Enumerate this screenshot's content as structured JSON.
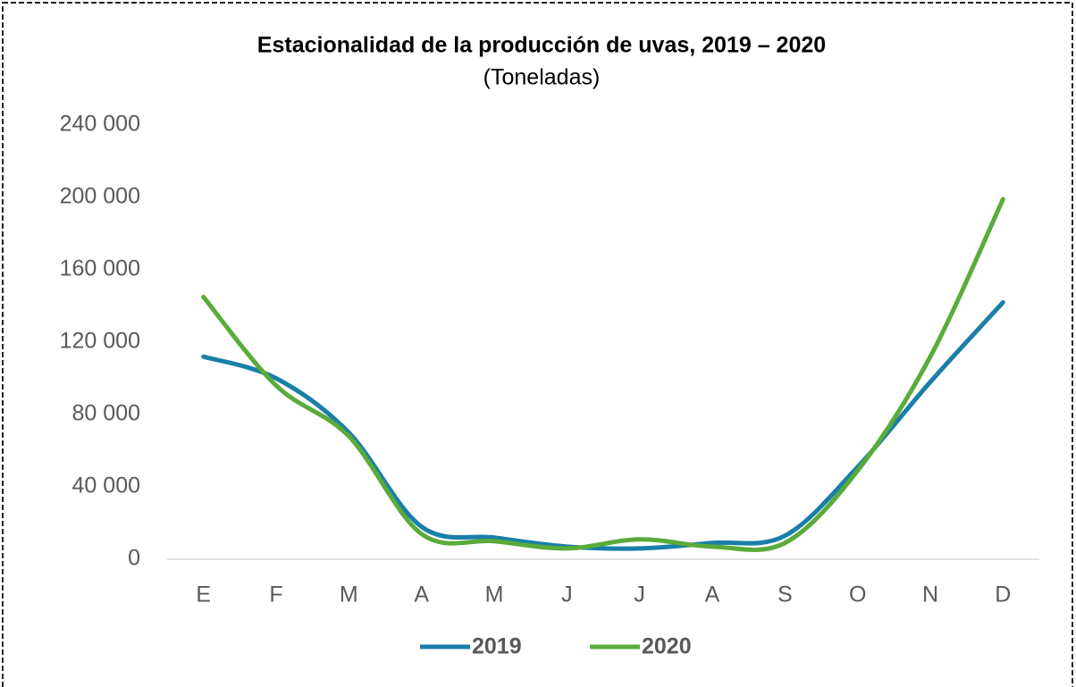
{
  "chart_data": {
    "type": "line",
    "title": "Estacionalidad de la producción de uvas, 2019 – 2020",
    "subtitle": "(Toneladas)",
    "categories": [
      "E",
      "F",
      "M",
      "A",
      "M",
      "J",
      "J",
      "A",
      "S",
      "O",
      "N",
      "D"
    ],
    "series": [
      {
        "name": "2019",
        "color": "#1a7fa8",
        "values": [
          112000,
          100000,
          70000,
          18000,
          12000,
          7000,
          6000,
          9000,
          13000,
          51000,
          98000,
          142000
        ]
      },
      {
        "name": "2020",
        "color": "#5aab3a",
        "values": [
          145000,
          96000,
          68000,
          14000,
          10000,
          6000,
          11000,
          7000,
          9000,
          49000,
          112000,
          199000
        ]
      }
    ],
    "ylim": [
      0,
      240000
    ],
    "yticks": [
      {
        "value": 0,
        "label": "0"
      },
      {
        "value": 40000,
        "label": "40 000"
      },
      {
        "value": 80000,
        "label": "80 000"
      },
      {
        "value": 120000,
        "label": "120 000"
      },
      {
        "value": 160000,
        "label": "160 000"
      },
      {
        "value": 200000,
        "label": "200 000"
      },
      {
        "value": 240000,
        "label": "240 000"
      }
    ],
    "grid": false,
    "smooth": true,
    "legend": "bottom"
  }
}
